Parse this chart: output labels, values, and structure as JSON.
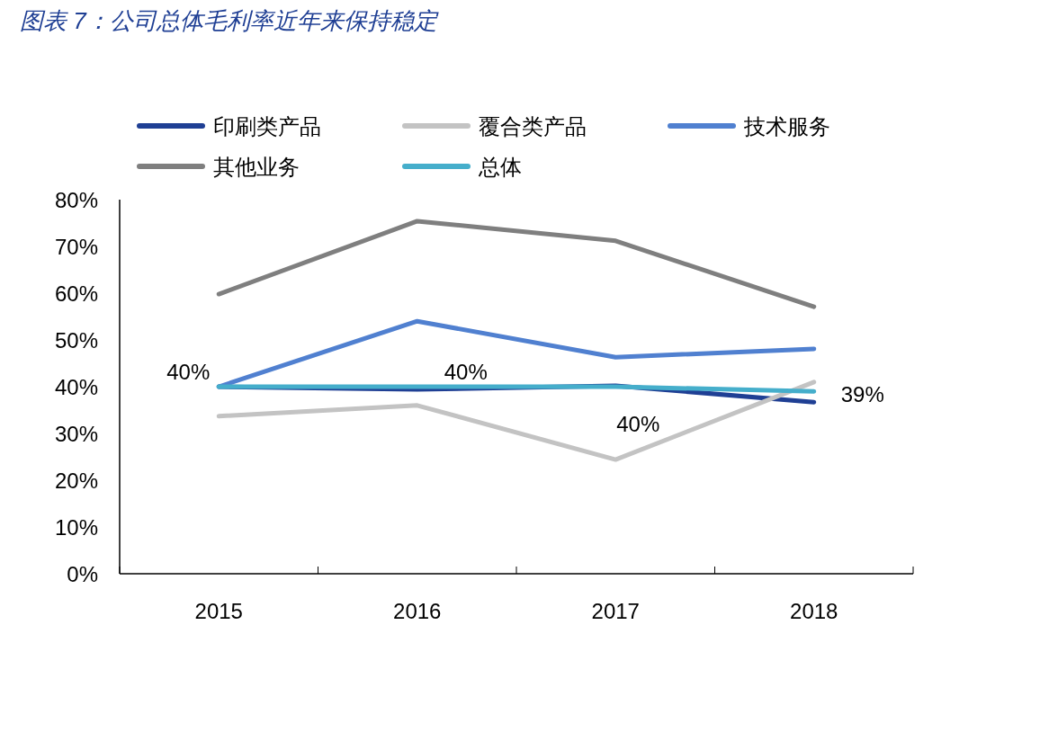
{
  "chart_data": {
    "type": "line",
    "title": "图表 7：公司总体毛利率近年来保持稳定",
    "categories": [
      "2015",
      "2016",
      "2017",
      "2018"
    ],
    "series": [
      {
        "name": "印刷类产品",
        "color": "#1f3f94",
        "values": [
          40,
          39.4,
          40.2,
          36.7
        ]
      },
      {
        "name": "覆合类产品",
        "color": "#c3c3c3",
        "values": [
          33.7,
          36,
          24.4,
          41
        ]
      },
      {
        "name": "技术服务",
        "color": "#5080d0",
        "values": [
          40,
          54,
          46.3,
          48.1
        ]
      },
      {
        "name": "其他业务",
        "color": "#7f7f7f",
        "values": [
          59.8,
          75.4,
          71.2,
          57.1
        ]
      },
      {
        "name": "总体",
        "color": "#45aecb",
        "values": [
          40,
          40,
          40,
          39
        ],
        "value_labels": [
          "40%",
          "40%",
          "40%",
          "39%"
        ]
      }
    ],
    "ylim": [
      0,
      80
    ],
    "yticks": [
      {
        "value": 0,
        "label": "0%"
      },
      {
        "value": 10,
        "label": "10%"
      },
      {
        "value": 20,
        "label": "20%"
      },
      {
        "value": 30,
        "label": "30%"
      },
      {
        "value": 40,
        "label": "40%"
      },
      {
        "value": 50,
        "label": "50%"
      },
      {
        "value": 60,
        "label": "60%"
      },
      {
        "value": 70,
        "label": "70%"
      },
      {
        "value": 80,
        "label": "80%"
      }
    ],
    "grid": false,
    "legend": "top"
  }
}
